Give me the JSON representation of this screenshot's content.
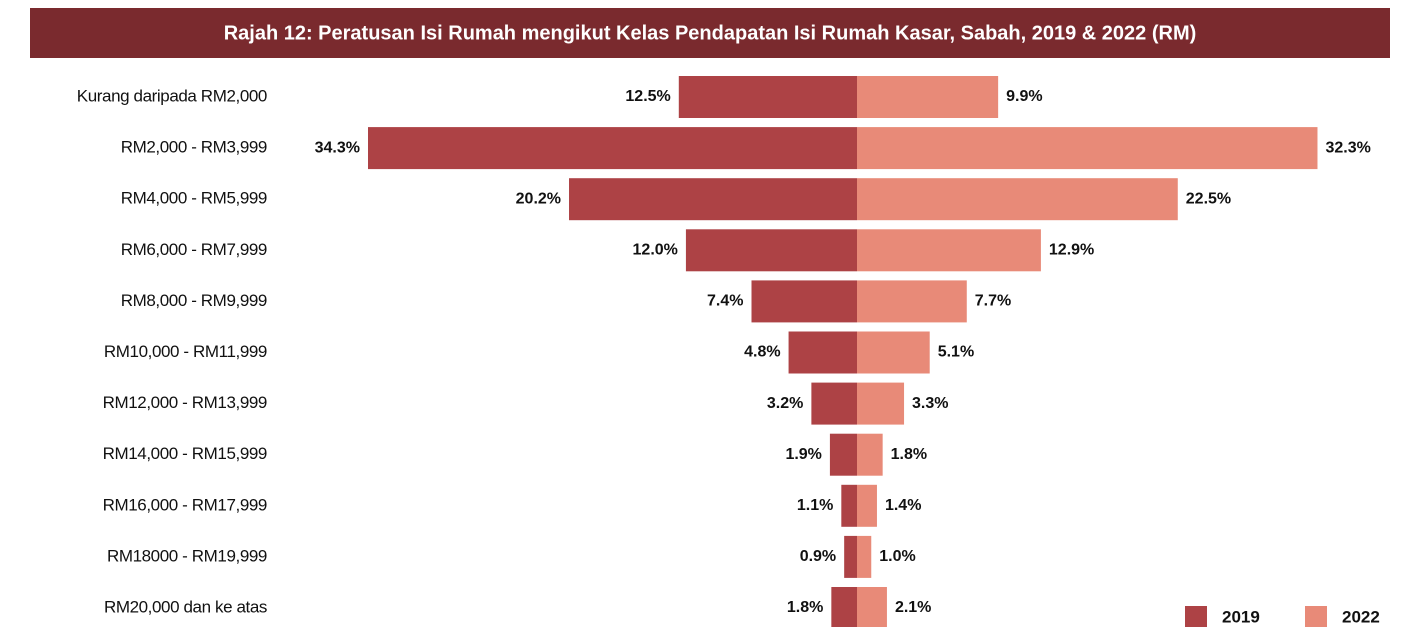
{
  "chart_data": {
    "type": "butterfly",
    "title": "Rajah 12: Peratusan Isi Rumah mengikut Kelas Pendapatan Isi Rumah Kasar, Sabah, 2019 & 2022 (RM)",
    "categories": [
      "Kurang daripada RM2,000",
      "RM2,000 - RM3,999",
      "RM4,000 - RM5,999",
      "RM6,000 - RM7,999",
      "RM8,000 - RM9,999",
      "RM10,000 - RM11,999",
      "RM12,000 - RM13,999",
      "RM14,000 - RM15,999",
      "RM16,000 - RM17,999",
      "RM18000 - RM19,999",
      "RM20,000 dan ke atas"
    ],
    "series": [
      {
        "name": "2019",
        "color": "#ad4245",
        "values": [
          12.5,
          34.3,
          20.2,
          12.0,
          7.4,
          4.8,
          3.2,
          1.9,
          1.1,
          0.9,
          1.8
        ],
        "value_labels": [
          "12.5%",
          "34.3%",
          "20.2%",
          "12.0%",
          "7.4%",
          "4.8%",
          "3.2%",
          "1.9%",
          "1.1%",
          "0.9%",
          "1.8%"
        ]
      },
      {
        "name": "2022",
        "color": "#e88a78",
        "values": [
          9.9,
          32.3,
          22.5,
          12.9,
          7.7,
          5.1,
          3.3,
          1.8,
          1.4,
          1.0,
          2.1
        ],
        "value_labels": [
          "9.9%",
          "32.3%",
          "22.5%",
          "12.9%",
          "7.7%",
          "5.1%",
          "3.3%",
          "1.8%",
          "1.4%",
          "1.0%",
          "2.1%"
        ]
      }
    ],
    "legend": "bottom-right"
  }
}
